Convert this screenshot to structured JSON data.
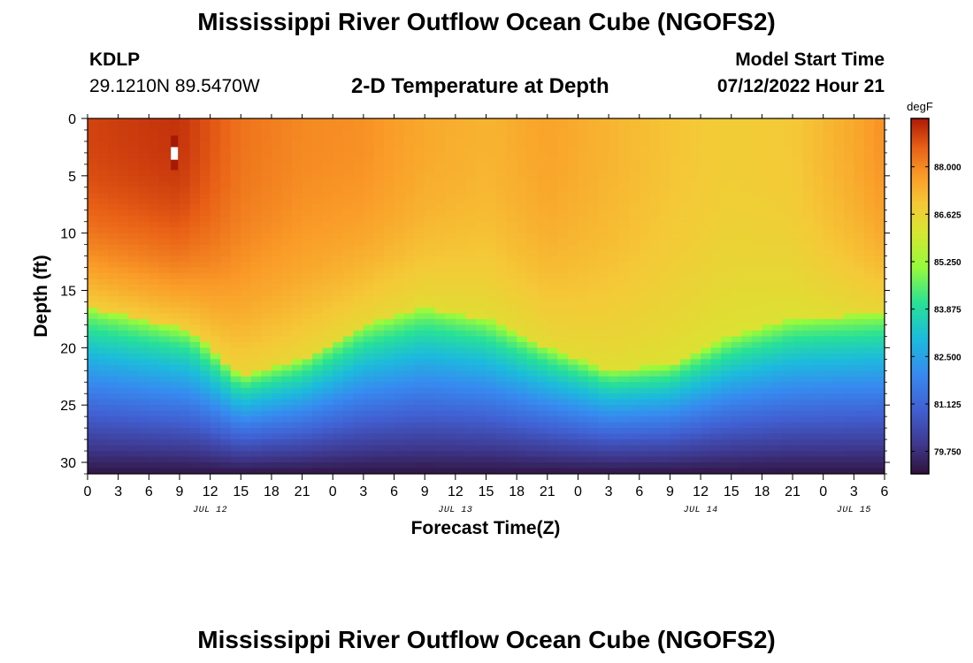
{
  "header": {
    "title": "Mississippi River Outflow Ocean Cube (NGOFS2)",
    "station": "KDLP",
    "coords": "29.1210N  89.5470W",
    "subtitle": "2-D Temperature at Depth",
    "start_label": "Model Start Time",
    "start_value": "07/12/2022 Hour 21"
  },
  "footer": {
    "title": "Mississippi River Outflow Ocean Cube (NGOFS2)"
  },
  "chart_data": {
    "type": "heatmap",
    "title": "2-D Temperature at Depth",
    "xlabel": "Forecast Time(Z)",
    "ylabel": "Depth (ft)",
    "x_range_hours": [
      0,
      78
    ],
    "x_start": "JUL 12 00Z",
    "x_tick_step_hours": 3,
    "x_tick_labels": [
      "0",
      "3",
      "6",
      "9",
      "12",
      "15",
      "18",
      "21",
      "0",
      "3",
      "6",
      "9",
      "12",
      "15",
      "18",
      "21",
      "0",
      "3",
      "6",
      "9",
      "12",
      "15",
      "18",
      "21",
      "0",
      "3",
      "6"
    ],
    "date_labels": [
      {
        "text": "JUL 12",
        "hour": 12
      },
      {
        "text": "JUL 13",
        "hour": 36
      },
      {
        "text": "JUL 14",
        "hour": 60
      },
      {
        "text": "JUL 15",
        "hour": 75
      }
    ],
    "ylim": [
      0,
      31
    ],
    "y_ticks": [
      0,
      5,
      10,
      15,
      20,
      25,
      30
    ],
    "y_tick_labels": [
      "0",
      "5",
      "10",
      "15",
      "20",
      "25",
      "30"
    ],
    "colorbar": {
      "unit": "degF",
      "min": 79.1,
      "max": 89.4,
      "ticks": [
        88.0,
        86.625,
        85.25,
        83.875,
        82.5,
        81.125,
        79.75
      ],
      "tick_labels": [
        "88.000",
        "86.625",
        "85.250",
        "83.875",
        "82.500",
        "81.125",
        "79.750"
      ]
    },
    "thermocline_depth_ft": [
      {
        "hour": 0,
        "depth": 16.5
      },
      {
        "hour": 10,
        "depth": 18.5
      },
      {
        "hour": 15,
        "depth": 22.5
      },
      {
        "hour": 21,
        "depth": 21
      },
      {
        "hour": 27,
        "depth": 18
      },
      {
        "hour": 33,
        "depth": 16.5
      },
      {
        "hour": 39,
        "depth": 17.5
      },
      {
        "hour": 45,
        "depth": 20
      },
      {
        "hour": 51,
        "depth": 22
      },
      {
        "hour": 57,
        "depth": 21.5
      },
      {
        "hour": 63,
        "depth": 19
      },
      {
        "hour": 69,
        "depth": 17.5
      },
      {
        "hour": 78,
        "depth": 17
      }
    ],
    "surface_temperature_degF": [
      {
        "hour": 0,
        "value": 88.9
      },
      {
        "hour": 9,
        "value": 89.1
      },
      {
        "hour": 15,
        "value": 88.3
      },
      {
        "hour": 21,
        "value": 88.0
      },
      {
        "hour": 27,
        "value": 87.9
      },
      {
        "hour": 33,
        "value": 87.5
      },
      {
        "hour": 39,
        "value": 87.3
      },
      {
        "hour": 45,
        "value": 87.6
      },
      {
        "hour": 51,
        "value": 87.3
      },
      {
        "hour": 57,
        "value": 87.0
      },
      {
        "hour": 63,
        "value": 86.8
      },
      {
        "hour": 69,
        "value": 86.9
      },
      {
        "hour": 75,
        "value": 87.5
      },
      {
        "hour": 78,
        "value": 87.9
      }
    ],
    "bottom_temperature_degF": 79.2,
    "marker": {
      "hour": 8.5,
      "depth_top": 1.5,
      "depth_bottom": 4.5
    }
  }
}
